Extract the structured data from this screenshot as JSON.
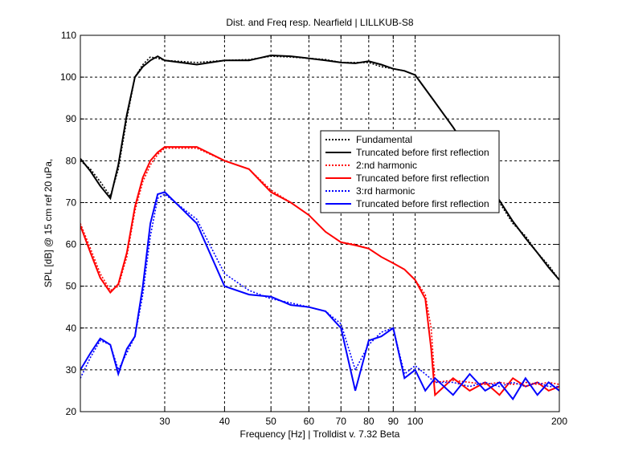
{
  "chart_data": {
    "type": "line",
    "title": "Dist. and Freq resp. Nearfield | LILLKUB-S8",
    "xlabel": "Frequency [Hz] | Trolldist v. 7.32 Beta",
    "ylabel": "SPL [dB] @ 15 cm ref 20 uPa,",
    "x_scale": "log",
    "xlim": [
      20,
      200
    ],
    "ylim": [
      20,
      110
    ],
    "grid": true,
    "legend_position": "center-right",
    "x_ticks": [
      30,
      40,
      50,
      60,
      70,
      80,
      90,
      100,
      200
    ],
    "y_ticks": [
      20,
      30,
      40,
      50,
      60,
      70,
      80,
      90,
      100,
      110
    ],
    "series": [
      {
        "name": "Fundamental",
        "color": "#000000",
        "style": "dotted",
        "x": [
          20,
          21,
          22,
          23.1,
          24,
          25,
          26,
          27,
          28,
          29,
          30,
          35,
          40,
          45,
          50,
          55,
          60,
          65,
          70,
          75,
          80,
          85,
          90,
          95,
          100,
          110,
          120,
          130,
          140,
          150,
          160,
          170,
          180,
          190,
          200
        ],
        "y": [
          80,
          78,
          75,
          71.5,
          78,
          90,
          100,
          103,
          104.8,
          104.5,
          104,
          103.5,
          104,
          104.2,
          105,
          104.8,
          104.5,
          104.2,
          103.5,
          103.5,
          103.5,
          102.5,
          102,
          101.5,
          100.5,
          94,
          88,
          82,
          76,
          70,
          65,
          62,
          58,
          55,
          51.5
        ]
      },
      {
        "name": "Truncated before first reflection",
        "color": "#000000",
        "style": "solid",
        "x": [
          20,
          21,
          22,
          23.1,
          24,
          25,
          26,
          27,
          28,
          29,
          30,
          35,
          40,
          45,
          50,
          55,
          60,
          65,
          70,
          75,
          80,
          85,
          90,
          95,
          100,
          110,
          120,
          130,
          140,
          150,
          160,
          170,
          180,
          190,
          200
        ],
        "y": [
          80.5,
          77.5,
          74,
          71,
          79,
          91,
          100,
          102.5,
          104,
          105,
          104,
          103,
          104,
          104,
          105.2,
          105,
          104.5,
          104,
          103.5,
          103.3,
          103.8,
          103,
          102,
          101.5,
          100.5,
          94,
          88,
          82,
          76,
          70.5,
          65.5,
          61.5,
          58,
          54.5,
          51.5
        ]
      },
      {
        "name": "2:nd harmonic",
        "color": "#ff0000",
        "style": "dotted",
        "x": [
          20,
          21,
          22,
          23.1,
          24,
          25,
          26,
          27,
          28,
          29,
          30,
          35,
          40,
          45,
          50,
          55,
          60,
          65,
          70,
          75,
          80,
          85,
          90,
          95,
          100,
          105,
          108,
          110,
          120,
          130,
          140,
          150,
          160,
          170,
          180,
          190,
          200
        ],
        "y": [
          65,
          59,
          53,
          49,
          50,
          57,
          68,
          75,
          79,
          81.5,
          83,
          83,
          80,
          78,
          73,
          70,
          67,
          63,
          60.5,
          60,
          59,
          57,
          55.5,
          54,
          51.5,
          48,
          40,
          27,
          27.5,
          27,
          26.5,
          27,
          26.5,
          27,
          26.5,
          27,
          26.5
        ]
      },
      {
        "name": "Truncated before first reflection",
        "color": "#ff0000",
        "style": "solid",
        "x": [
          20,
          21,
          22,
          23.1,
          24,
          25,
          26,
          27,
          28,
          29,
          30,
          35,
          40,
          45,
          50,
          55,
          60,
          65,
          70,
          75,
          80,
          85,
          90,
          95,
          100,
          105,
          108,
          110,
          120,
          130,
          140,
          150,
          160,
          170,
          180,
          190,
          200
        ],
        "y": [
          64.5,
          58,
          52,
          48.5,
          50.5,
          58,
          69,
          76,
          80,
          82,
          83.3,
          83.3,
          80,
          78,
          72.5,
          70,
          67,
          63,
          60.5,
          59.8,
          59,
          57,
          55.5,
          54,
          51.5,
          47,
          35,
          24,
          28,
          25,
          27,
          24,
          28,
          26,
          27,
          25,
          26
        ]
      },
      {
        "name": "3:rd harmonic",
        "color": "#0000ff",
        "style": "dotted",
        "x": [
          20,
          21,
          22,
          23.1,
          24,
          25,
          26,
          27,
          28,
          29,
          30,
          35,
          40,
          45,
          50,
          55,
          60,
          65,
          70,
          75,
          80,
          85,
          90,
          95,
          100,
          105,
          110,
          120,
          130,
          140,
          150,
          160,
          170,
          180,
          190,
          200
        ],
        "y": [
          28,
          33,
          37,
          36,
          30,
          34,
          38,
          48,
          62,
          71,
          72,
          66,
          53,
          49,
          47,
          46,
          45,
          44,
          41,
          30,
          36,
          39,
          40,
          29,
          31,
          29,
          27,
          27,
          26,
          27,
          26,
          27,
          26,
          27,
          26,
          26
        ]
      },
      {
        "name": "Truncated before first reflection",
        "color": "#0000ff",
        "style": "solid",
        "x": [
          20,
          21,
          22,
          23.1,
          24,
          25,
          26,
          27,
          28,
          29,
          30,
          35,
          40,
          45,
          50,
          55,
          60,
          65,
          70,
          75,
          80,
          85,
          90,
          95,
          100,
          105,
          110,
          120,
          130,
          140,
          150,
          160,
          170,
          180,
          190,
          200
        ],
        "y": [
          30,
          34,
          37.5,
          36,
          29,
          35,
          38,
          50,
          65,
          72,
          72.5,
          65,
          50,
          48,
          47.5,
          45.5,
          45,
          44,
          40,
          25,
          37,
          38,
          40,
          28,
          30,
          25,
          28,
          24,
          29,
          25,
          27,
          23,
          28,
          24,
          27,
          25
        ]
      }
    ]
  }
}
